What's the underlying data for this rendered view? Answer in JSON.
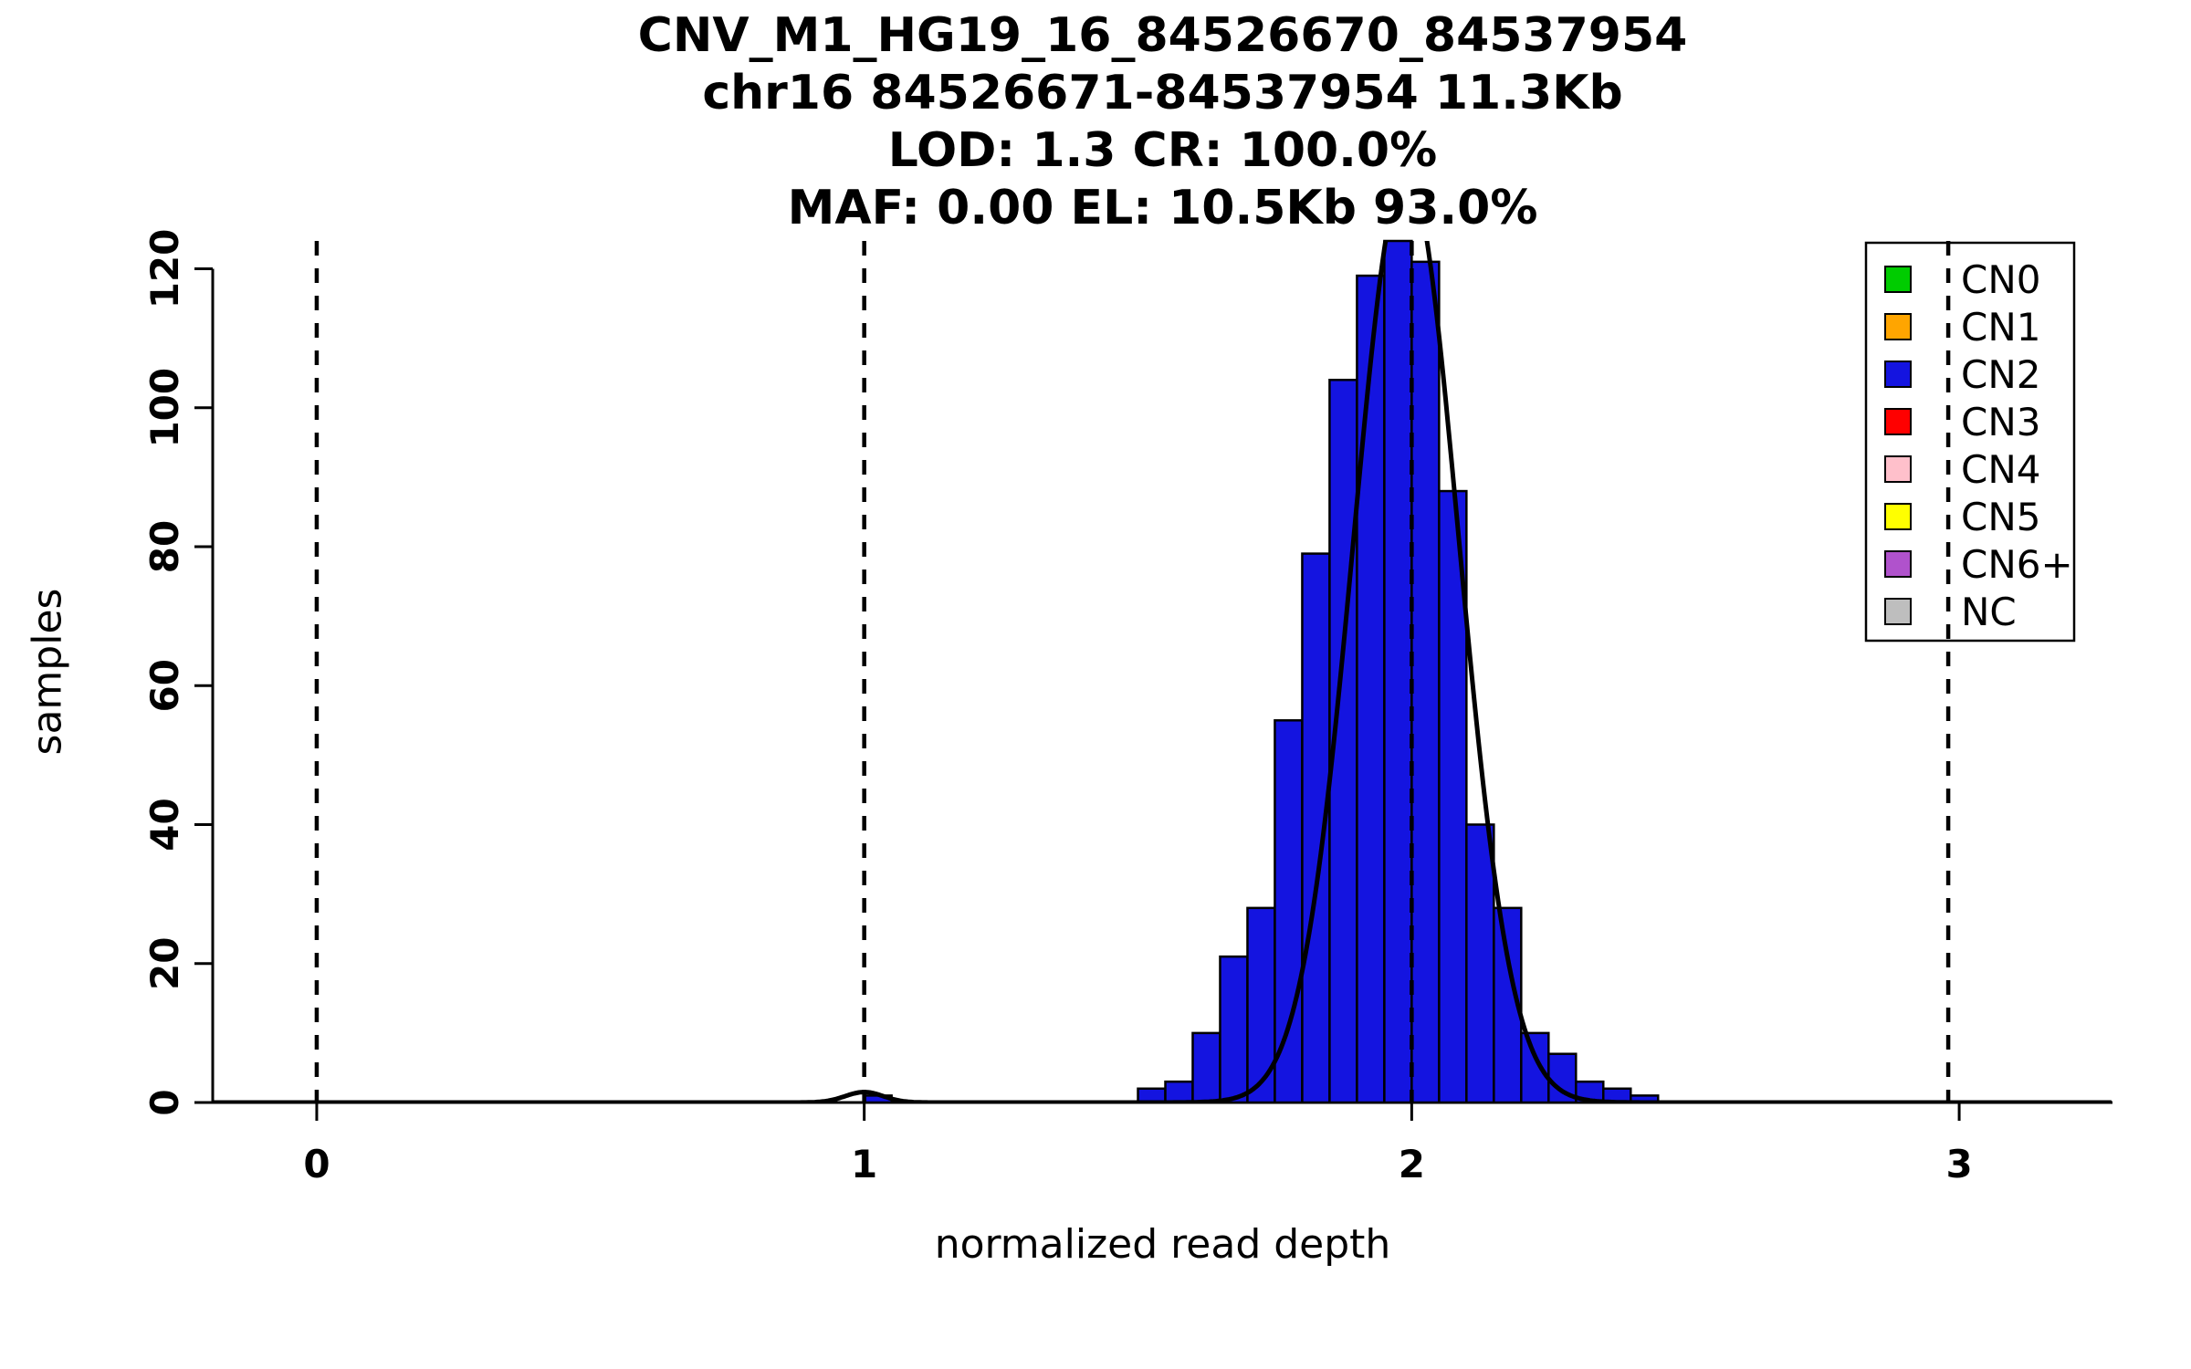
{
  "chart_data": {
    "type": "bar",
    "subtype": "histogram_with_density_curve",
    "title_lines": [
      "CNV_M1_HG19_16_84526670_84537954",
      "chr16 84526671-84537954 11.3Kb",
      "LOD: 1.3 CR: 100.0%",
      "MAF: 0.00 EL: 10.5Kb 93.0%"
    ],
    "xlabel": "normalized read depth",
    "ylabel": "samples",
    "xlim": [
      -0.19,
      3.28
    ],
    "ylim": [
      0,
      124
    ],
    "x_ticks": [
      "0",
      "1",
      "2",
      "3"
    ],
    "x_tick_values": [
      0,
      1,
      2,
      3
    ],
    "y_ticks": [
      "0",
      "20",
      "40",
      "60",
      "80",
      "100",
      "120"
    ],
    "y_tick_values": [
      0,
      20,
      40,
      60,
      80,
      100,
      120
    ],
    "grid": false,
    "dashed_guidelines_x": [
      0,
      1,
      2,
      2.98
    ],
    "histogram": {
      "bin_width": 0.05,
      "bar_fill": "#1414E0",
      "bar_stroke": "#000000",
      "bins": [
        {
          "start": 1.0,
          "count": 1
        },
        {
          "start": 1.5,
          "count": 2
        },
        {
          "start": 1.55,
          "count": 3
        },
        {
          "start": 1.6,
          "count": 10
        },
        {
          "start": 1.65,
          "count": 21
        },
        {
          "start": 1.7,
          "count": 28
        },
        {
          "start": 1.75,
          "count": 55
        },
        {
          "start": 1.8,
          "count": 79
        },
        {
          "start": 1.85,
          "count": 104
        },
        {
          "start": 1.9,
          "count": 119
        },
        {
          "start": 1.95,
          "count": 124
        },
        {
          "start": 2.0,
          "count": 121
        },
        {
          "start": 2.05,
          "count": 88
        },
        {
          "start": 2.1,
          "count": 40
        },
        {
          "start": 2.15,
          "count": 28
        },
        {
          "start": 2.2,
          "count": 10
        },
        {
          "start": 2.25,
          "count": 7
        },
        {
          "start": 2.3,
          "count": 3
        },
        {
          "start": 2.35,
          "count": 2
        },
        {
          "start": 2.4,
          "count": 1
        }
      ]
    },
    "density_curve": {
      "stroke": "#000000",
      "gaussian_components": [
        {
          "mean": 1.99,
          "sd": 0.096,
          "peak": 134
        },
        {
          "mean": 1.0,
          "sd": 0.035,
          "peak": 1.5
        }
      ]
    },
    "legend": {
      "position": "top-right",
      "items": [
        {
          "label": "CN0",
          "color": "#00CC00"
        },
        {
          "label": "CN1",
          "color": "#FFA500"
        },
        {
          "label": "CN2",
          "color": "#1414E0"
        },
        {
          "label": "CN3",
          "color": "#FF0000"
        },
        {
          "label": "CN4",
          "color": "#FFC0CB"
        },
        {
          "label": "CN5",
          "color": "#FFFF00"
        },
        {
          "label": "CN6+",
          "color": "#B052CC"
        },
        {
          "label": "NC",
          "color": "#BEBEBE"
        }
      ]
    }
  }
}
